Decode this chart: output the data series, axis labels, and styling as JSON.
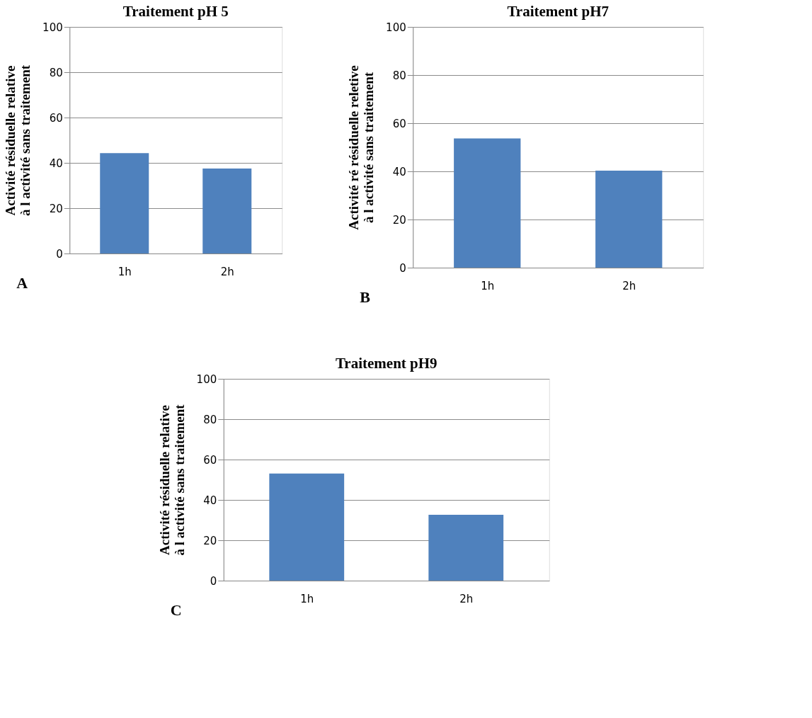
{
  "chart_data": [
    {
      "type": "bar",
      "title": "Traitement pH 5",
      "ylabel": "Activité résiduelle relative\nà l activité sans traitement",
      "categories": [
        "1h",
        "2h"
      ],
      "values": [
        44.3,
        37.5
      ],
      "color": "#4f81bd",
      "ylim": [
        0,
        100
      ],
      "yticks": [
        0,
        20,
        40,
        60,
        80,
        100
      ],
      "grid": "y",
      "annotations": [
        "A"
      ]
    },
    {
      "type": "bar",
      "title": "Traitement pH7",
      "ylabel": "Activité ré résiduelle reletive\nà l activité sans traitement",
      "categories": [
        "1h",
        "2h"
      ],
      "values": [
        53.7,
        40.3
      ],
      "color": "#4f81bd",
      "ylim": [
        0,
        100
      ],
      "yticks": [
        0,
        20,
        40,
        60,
        80,
        100
      ],
      "grid": "y",
      "annotations": [
        "B"
      ]
    },
    {
      "type": "bar",
      "title": "Traitement pH9",
      "ylabel": "Activité résiduelle relative\nà l activité sans traitement",
      "categories": [
        "1h",
        "2h"
      ],
      "values": [
        53.1,
        32.6
      ],
      "color": "#4f81bd",
      "ylim": [
        0,
        100
      ],
      "yticks": [
        0,
        20,
        40,
        60,
        80,
        100
      ],
      "grid": "y",
      "annotations": [
        "C"
      ]
    }
  ]
}
